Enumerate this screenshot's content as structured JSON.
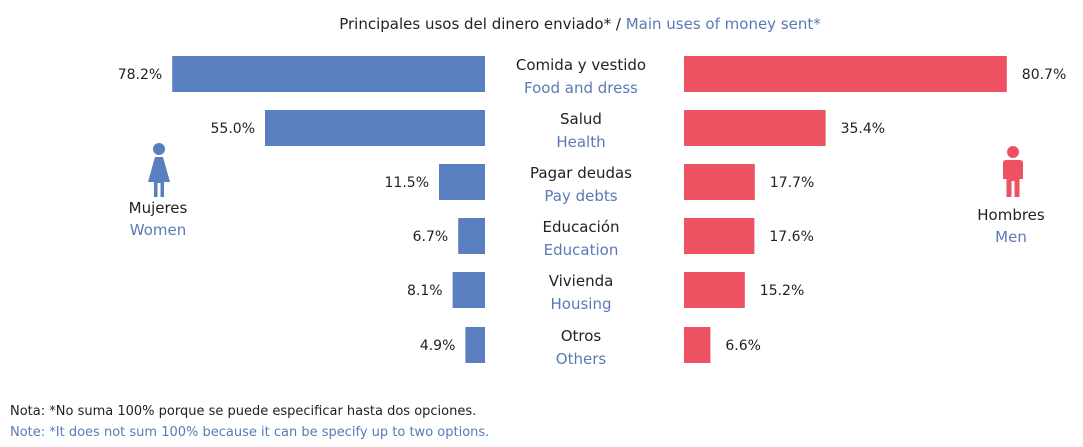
{
  "title": {
    "es": "Principales usos del dinero enviado*",
    "separator": "/",
    "en": "Main uses of money sent*"
  },
  "women": {
    "es": "Mujeres",
    "en": "Women",
    "color": "#5a7fc0",
    "icon": "woman-icon"
  },
  "men": {
    "es": "Hombres",
    "en": "Men",
    "color": "#ee5262",
    "icon": "man-icon"
  },
  "notes": {
    "es": "Nota: *No suma 100% porque se puede especificar hasta dos opciones.",
    "en": "Note: *It does not sum 100% because it can be specify up to two options."
  },
  "chart_data": {
    "type": "bar",
    "orientation": "horizontal-diverging",
    "categories": [
      {
        "es": "Comida y vestido",
        "en": "Food and dress"
      },
      {
        "es": "Salud",
        "en": "Health"
      },
      {
        "es": "Pagar deudas",
        "en": "Pay debts"
      },
      {
        "es": "Educación",
        "en": "Education"
      },
      {
        "es": "Vivienda",
        "en": "Housing"
      },
      {
        "es": "Otros",
        "en": "Others"
      }
    ],
    "series": [
      {
        "name": "Mujeres / Women",
        "side": "left",
        "color": "#5a7fc0",
        "values": [
          78.2,
          55.0,
          11.5,
          6.7,
          8.1,
          4.9
        ]
      },
      {
        "name": "Hombres / Men",
        "side": "right",
        "color": "#ee5262",
        "values": [
          80.7,
          35.4,
          17.7,
          17.6,
          15.2,
          6.6
        ]
      }
    ],
    "value_format": "0.0%",
    "xlim": [
      0,
      100
    ],
    "grid": false
  }
}
